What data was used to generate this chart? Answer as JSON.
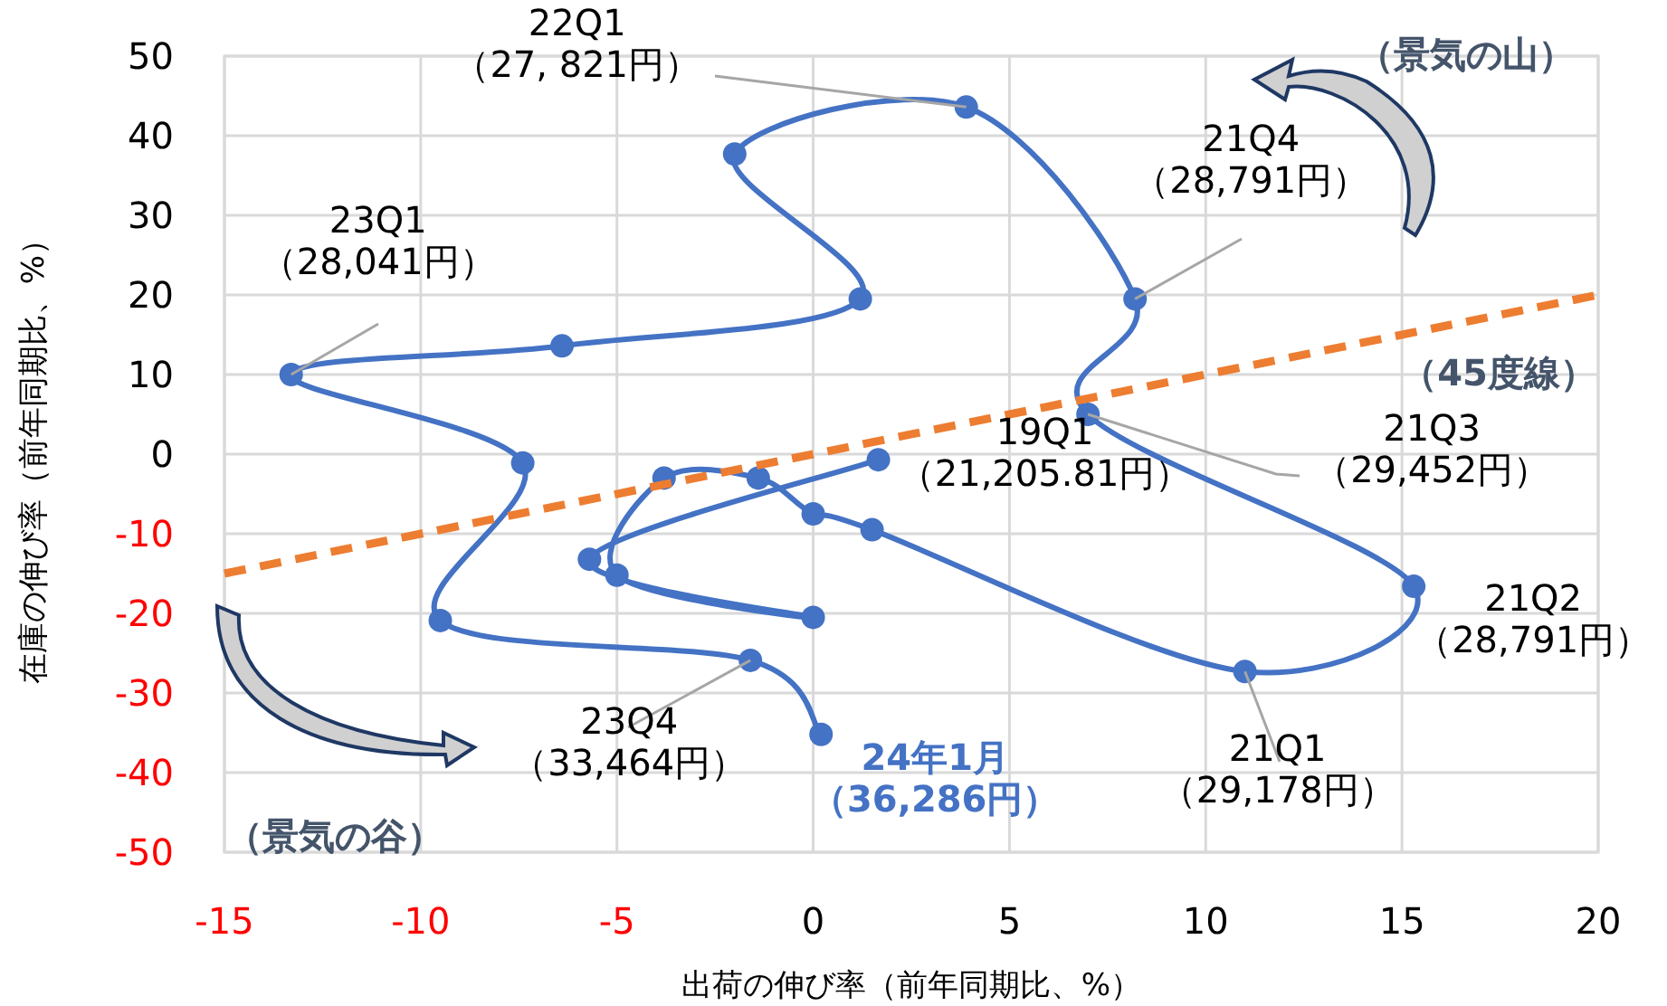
{
  "chart_data": {
    "type": "line",
    "xlabel": "出荷の伸び率（前年同期比、%）",
    "ylabel": "在庫の伸び率（前年同期比、%）",
    "xlim": [
      -15,
      20
    ],
    "xticks": [
      -15,
      -10,
      -5,
      0,
      5,
      10,
      15,
      20
    ],
    "ylim": [
      -50,
      50
    ],
    "yticks": [
      -50,
      -40,
      -30,
      -20,
      -10,
      0,
      10,
      20,
      30,
      40,
      50
    ],
    "grid": true,
    "marker": "circle",
    "series": [
      {
        "color": "#4472c4",
        "x": [
          1.66,
          -5.7,
          0,
          -5.0,
          -3.8,
          -1.4,
          0,
          1.5,
          11.0,
          15.3,
          7.0,
          8.2,
          3.9,
          -2.0,
          1.2,
          -6.4,
          -13.3,
          -7.4,
          -9.5,
          -1.6,
          0.2
        ],
        "values": [
          -0.7,
          -13.2,
          -20.5,
          -15.2,
          -3,
          -3,
          -7.5,
          -9.5,
          -27.3,
          -16.6,
          5,
          19.5,
          43.6,
          37.7,
          19.5,
          13.6,
          10,
          -1.1,
          -20.9,
          -25.9,
          -35.2
        ]
      },
      {
        "type": "line",
        "color": "#ed7d31",
        "line_style": "dashed",
        "marker": "none",
        "x": [
          -15,
          20
        ],
        "values": [
          -15,
          20
        ]
      }
    ],
    "annotations": [
      {
        "text": "22Q1\n（27, 821円）",
        "x": 3.9,
        "y": 43.6
      },
      {
        "text": "21Q4\n（28,791円）",
        "x": 8.2,
        "y": 19.5
      },
      {
        "text": "23Q1\n（28,041円）",
        "x": -13.3,
        "y": 10
      },
      {
        "text": "19Q1\n（21,205.81円）",
        "x": 1.66,
        "y": -0.7
      },
      {
        "text": "21Q3\n（29,452円）",
        "x": 7.0,
        "y": 5
      },
      {
        "text": "21Q2\n（28,791円）",
        "x": 15.3,
        "y": -16.6
      },
      {
        "text": "21Q1\n（29,178円）",
        "x": 11.0,
        "y": -27.3
      },
      {
        "text": "23Q4\n（33,464円）",
        "x": -1.6,
        "y": -25.9
      },
      {
        "text": "24年1月（36,286円）",
        "x": 0.2,
        "y": -35.2
      },
      "（景気の山）",
      "（45度線）",
      "（景気の谷）"
    ]
  }
}
